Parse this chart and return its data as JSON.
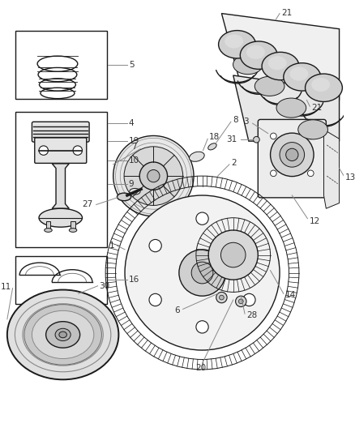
{
  "bg": "#ffffff",
  "lc": "#1a1a1a",
  "gc": "#888888",
  "fig_w": 4.38,
  "fig_h": 5.33,
  "dpi": 100
}
